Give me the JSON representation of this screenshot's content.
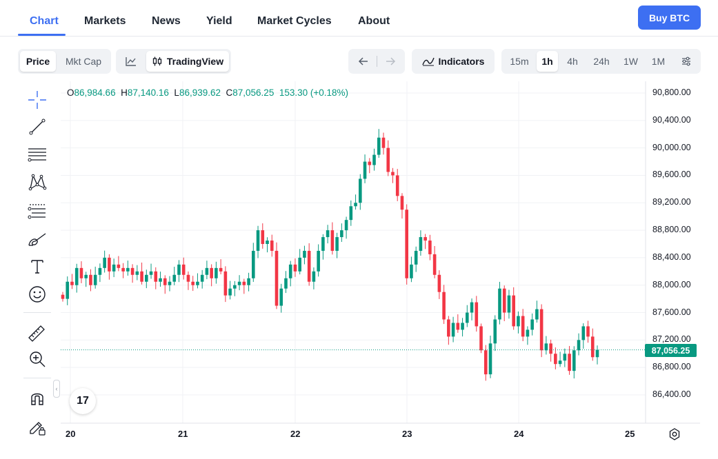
{
  "nav": {
    "tabs": [
      {
        "label": "Chart",
        "active": true
      },
      {
        "label": "Markets"
      },
      {
        "label": "News"
      },
      {
        "label": "Yield"
      },
      {
        "label": "Market Cycles"
      },
      {
        "label": "About"
      }
    ],
    "buy_label": "Buy BTC"
  },
  "toolbar": {
    "price_label": "Price",
    "mktcap_label": "Mkt Cap",
    "tradingview_label": "TradingView",
    "indicators_label": "Indicators",
    "intervals": [
      "15m",
      "1h",
      "4h",
      "24h",
      "1W",
      "1M"
    ],
    "active_interval": "1h"
  },
  "ohlc": {
    "o_label": "O",
    "o": "86,984.66",
    "h_label": "H",
    "h": "87,140.16",
    "l_label": "L",
    "l": "86,939.62",
    "c_label": "C",
    "c": "87,056.25",
    "change": "153.30 (+0.18%)"
  },
  "current_price": "87,056.25",
  "colors": {
    "up": "#089981",
    "down": "#f23645",
    "accent": "#3d6ff2"
  },
  "chart_data": {
    "type": "candlestick",
    "y_ticks": [
      "90,800.00",
      "90,400.00",
      "90,000.00",
      "89,600.00",
      "89,200.00",
      "88,800.00",
      "88,400.00",
      "88,000.00",
      "87,600.00",
      "87,200.00",
      "86,800.00",
      "86,400.00"
    ],
    "x_ticks": [
      "20",
      "21",
      "22",
      "23",
      "24",
      "25"
    ],
    "ylim": [
      86200,
      91000
    ],
    "current_value": 87056.25,
    "closes": [
      87800,
      88050,
      88000,
      88250,
      88100,
      88150,
      88000,
      88150,
      88250,
      88400,
      88200,
      88300,
      88250,
      88200,
      88250,
      88150,
      88200,
      88050,
      88150,
      88200,
      88050,
      88100,
      88000,
      88050,
      88150,
      88300,
      88150,
      88050,
      88000,
      88050,
      88150,
      88250,
      88100,
      88250,
      88200,
      87850,
      87950,
      88000,
      88050,
      88000,
      88100,
      88500,
      88800,
      88600,
      88650,
      88500,
      87700,
      87950,
      88100,
      88300,
      88200,
      88400,
      88500,
      88050,
      88200,
      88500,
      88700,
      88800,
      88500,
      88700,
      88800,
      88950,
      89150,
      89200,
      89550,
      89800,
      89750,
      89900,
      90150,
      90000,
      89650,
      89600,
      89300,
      89100,
      88100,
      88300,
      88500,
      88700,
      88650,
      88450,
      88150,
      87900,
      87500,
      87250,
      87450,
      87350,
      87450,
      87600,
      87750,
      87400,
      87050,
      86700,
      87150,
      87500,
      87950,
      87600,
      87850,
      87400,
      87550,
      87250,
      87350,
      87500,
      87650,
      87050,
      87150,
      87000,
      86850,
      86900,
      87000,
      86750,
      87050,
      87200,
      87400,
      87250,
      86950,
      87056.25
    ],
    "intraday_tick_note": ""
  },
  "tools": [
    "crosshair-icon",
    "trend-line-icon",
    "horizontal-lines-icon",
    "pattern-icon",
    "fib-icon",
    "brush-icon",
    "text-icon",
    "emoji-icon",
    "ruler-icon",
    "zoom-in-icon",
    "magnet-icon",
    "lock-draw-icon"
  ],
  "logo_text": "17"
}
